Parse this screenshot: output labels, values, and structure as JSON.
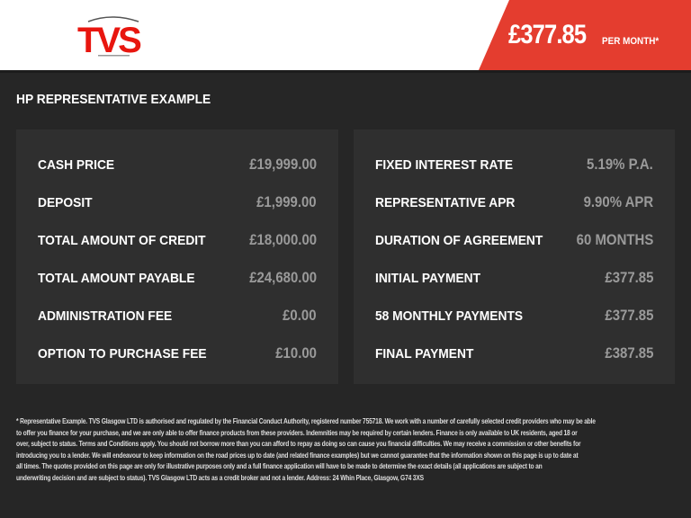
{
  "header": {
    "logo_text": "TVS",
    "price": "£377.85",
    "per_month": "PER MONTH*",
    "brand_color": "#e43d2f"
  },
  "title": "HP REPRESENTATIVE EXAMPLE",
  "left": [
    {
      "label": "CASH PRICE",
      "value": "£19,999.00"
    },
    {
      "label": "DEPOSIT",
      "value": "£1,999.00"
    },
    {
      "label": "TOTAL AMOUNT OF CREDIT",
      "value": "£18,000.00"
    },
    {
      "label": "TOTAL AMOUNT PAYABLE",
      "value": "£24,680.00"
    },
    {
      "label": "ADMINISTRATION FEE",
      "value": "£0.00"
    },
    {
      "label": "OPTION TO PURCHASE FEE",
      "value": "£10.00"
    }
  ],
  "right": [
    {
      "label": "FIXED INTEREST RATE",
      "value": "5.19% P.A."
    },
    {
      "label": "REPRESENTATIVE APR",
      "value": "9.90% APR"
    },
    {
      "label": "DURATION OF AGREEMENT",
      "value": "60 MONTHS"
    },
    {
      "label": "INITIAL PAYMENT",
      "value": "£377.85"
    },
    {
      "label": "58 MONTHLY PAYMENTS",
      "value": "£377.85"
    },
    {
      "label": "FINAL PAYMENT",
      "value": "£387.85"
    }
  ],
  "footer": [
    "* Representative Example. TVS Glasgow LTD is authorised and regulated by the Financial Conduct Authority, registered number 755718. We work with a number of carefully selected credit providers who may be able",
    "to offer you finance for your purchase, and we are only able to offer finance products from these providers. Indemnities may be required by certain lenders. Finance is only available to UK residents, aged 18 or",
    "over, subject to status. Terms and Conditions apply. You should not borrow more than you can afford to repay as doing so can cause you financial difficulties. We may receive a commission or other benefits for",
    "introducing you to a lender. We will endeavour to keep information on the road prices up to date (and related finance examples) but we cannot guarantee that the information shown on this page is up to date at",
    "all times. The quotes provided on this page are only for illustrative purposes only and a full finance application will have to be made to determine the exact details (all applications are subject to an",
    "underwriting decision and are subject to status). TVS Glasgow LTD acts as a credit broker and not a lender. Address: 24 Whin Place, Glasgow, G74 3XS"
  ]
}
